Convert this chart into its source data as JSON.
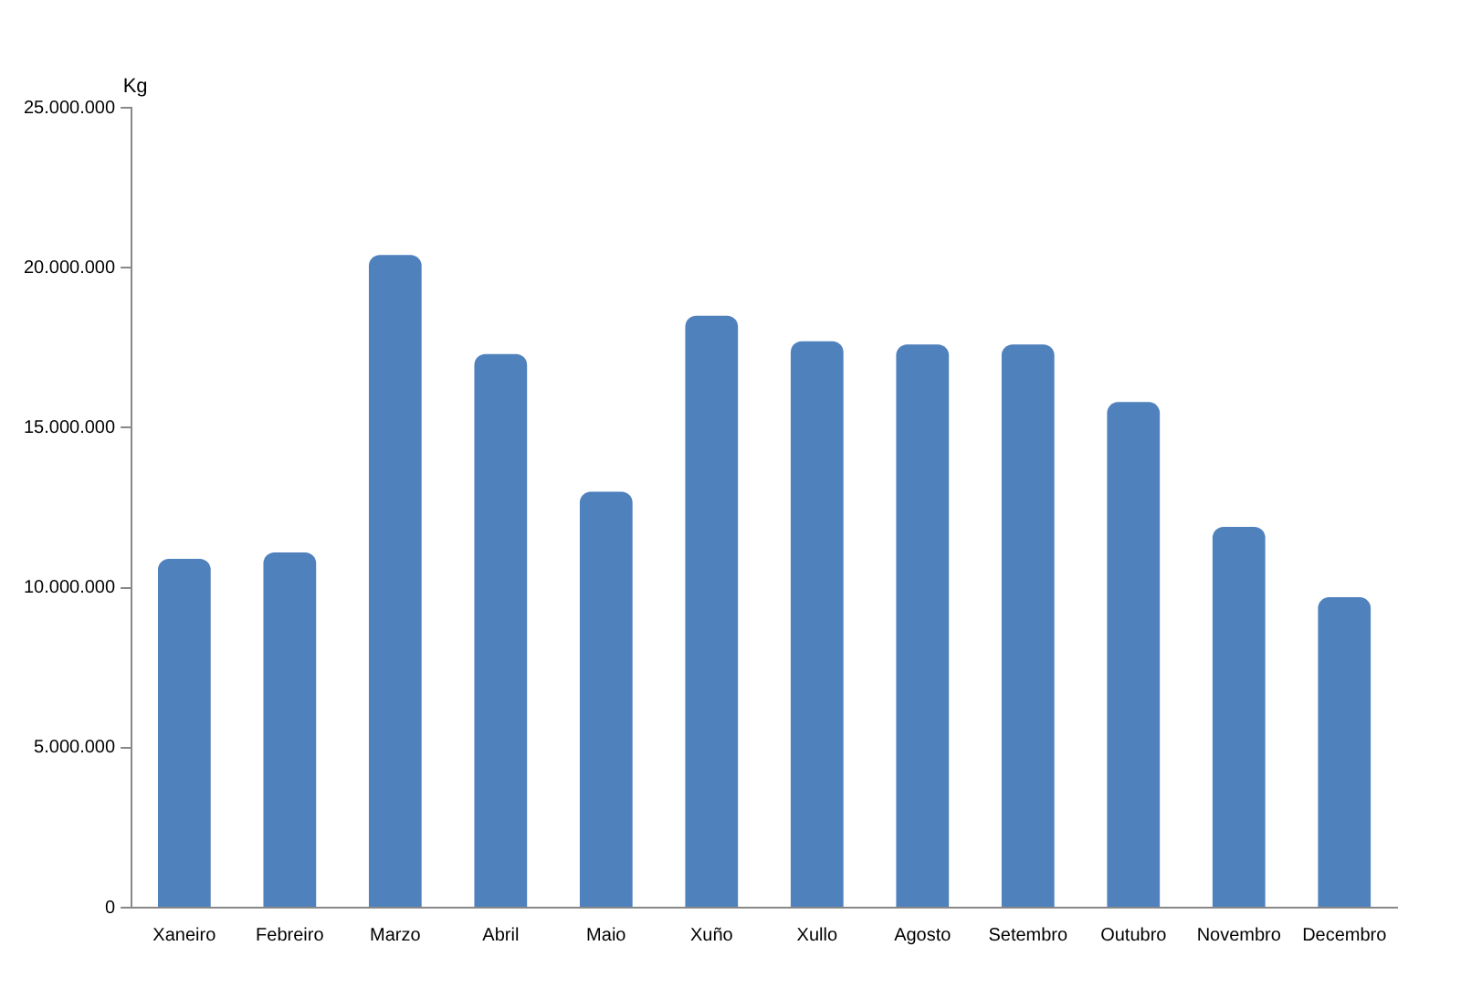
{
  "chart_data": {
    "type": "bar",
    "ylabel": "Kg",
    "categories": [
      "Xaneiro",
      "Febreiro",
      "Marzo",
      "Abril",
      "Maio",
      "Xuño",
      "Xullo",
      "Agosto",
      "Setembro",
      "Outubro",
      "Novembro",
      "Decembro"
    ],
    "values": [
      10900000,
      11100000,
      20400000,
      17300000,
      13000000,
      18500000,
      17700000,
      17600000,
      17600000,
      15800000,
      11900000,
      9700000
    ],
    "color": "#4f81bd",
    "ylim": [
      0,
      25000000
    ],
    "yticks": [
      0,
      {
        "value": 5000000,
        "label": "5.000.000"
      },
      {
        "value": 10000000,
        "label": "10.000.000"
      },
      {
        "value": 15000000,
        "label": "15.000.000"
      },
      {
        "value": 20000000,
        "label": "20.000.000"
      },
      {
        "value": 25000000,
        "label": "25.000.000"
      }
    ],
    "grid": false,
    "legend": false
  }
}
